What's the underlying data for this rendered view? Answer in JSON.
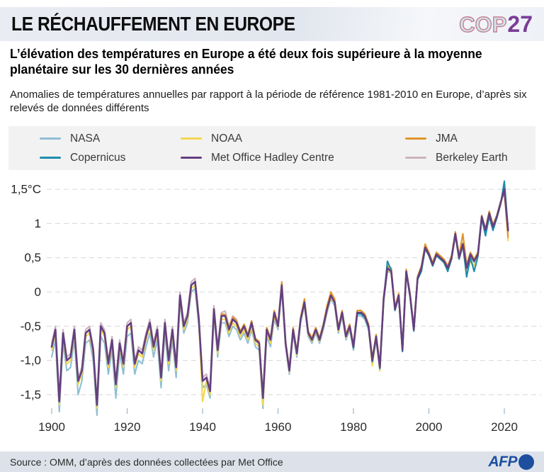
{
  "header": {
    "title": "LE RÉCHAUFFEMENT EN EUROPE",
    "logo_cop": "COP",
    "logo_num": "27"
  },
  "subtitle": "L’élévation des températures en Europe a été deux fois supérieure à la moyenne planétaire sur les 30 dernières années",
  "description": "Anomalies de températures annuelles par rapport à la période de référence 1981-2010 en Europe, d’après six relevés de données différents",
  "legend": {
    "columns": [
      [
        {
          "label": "NASA",
          "color": "#8fbfd4"
        },
        {
          "label": "Copernicus",
          "color": "#1e8cab"
        }
      ],
      [
        {
          "label": "NOAA",
          "color": "#f2d74e"
        },
        {
          "label": "Met Office Hadley Centre",
          "color": "#64407f"
        }
      ],
      [
        {
          "label": "JMA",
          "color": "#e2942a"
        },
        {
          "label": "Berkeley Earth",
          "color": "#ccb2bd"
        }
      ]
    ]
  },
  "footer": {
    "source": "Source : OMM, d’après des données collectées par Met Office",
    "logo_text": "AFP"
  },
  "chart_data": {
    "type": "line",
    "title": "Anomalies de températures annuelles en Europe (référence 1981-2010)",
    "unit": "°C",
    "grid": true,
    "legend_position": "top",
    "ylim": [
      -1.9,
      1.7
    ],
    "ytick_values": [
      1.5,
      1,
      0.5,
      0,
      -0.5,
      -1,
      -1.5
    ],
    "ytick_labels": [
      "1,5°C",
      "1",
      "0,5",
      "0",
      "-0,5",
      "-1,0",
      "-1,5"
    ],
    "xticks": [
      1900,
      1920,
      1940,
      1960,
      1980,
      2000,
      2020
    ],
    "years": [
      1900,
      1901,
      1902,
      1903,
      1904,
      1905,
      1906,
      1907,
      1908,
      1909,
      1910,
      1911,
      1912,
      1913,
      1914,
      1915,
      1916,
      1917,
      1918,
      1919,
      1920,
      1921,
      1922,
      1923,
      1924,
      1925,
      1926,
      1927,
      1928,
      1929,
      1930,
      1931,
      1932,
      1933,
      1934,
      1935,
      1936,
      1937,
      1938,
      1939,
      1940,
      1941,
      1942,
      1943,
      1944,
      1945,
      1946,
      1947,
      1948,
      1949,
      1950,
      1951,
      1952,
      1953,
      1954,
      1955,
      1956,
      1957,
      1958,
      1959,
      1960,
      1961,
      1962,
      1963,
      1964,
      1965,
      1966,
      1967,
      1968,
      1969,
      1970,
      1971,
      1972,
      1973,
      1974,
      1975,
      1976,
      1977,
      1978,
      1979,
      1980,
      1981,
      1982,
      1983,
      1984,
      1985,
      1986,
      1987,
      1988,
      1989,
      1990,
      1991,
      1992,
      1993,
      1994,
      1995,
      1996,
      1997,
      1998,
      1999,
      2000,
      2001,
      2002,
      2003,
      2004,
      2005,
      2006,
      2007,
      2008,
      2009,
      2010,
      2011,
      2012,
      2013,
      2014,
      2015,
      2016,
      2017,
      2018,
      2019,
      2020,
      2021
    ],
    "series": [
      {
        "name": "NASA",
        "color": "#8fbfd4",
        "values": [
          -0.95,
          -0.7,
          -1.75,
          -0.75,
          -1.15,
          -1.1,
          -0.7,
          -1.5,
          -1.3,
          -0.75,
          -0.7,
          -1.0,
          -1.8,
          -0.65,
          -0.75,
          -1.2,
          -0.85,
          -1.55,
          -0.9,
          -1.2,
          -0.65,
          -0.6,
          -1.2,
          -1.0,
          -1.05,
          -0.8,
          -0.6,
          -0.95,
          -0.7,
          -1.4,
          -0.6,
          -1.15,
          -0.7,
          -1.25,
          -0.15,
          -0.6,
          -0.45,
          0.0,
          0.05,
          -0.5,
          -1.4,
          -1.35,
          -1.55,
          -0.35,
          -0.95,
          -0.45,
          -0.45,
          -0.65,
          -0.5,
          -0.55,
          -0.7,
          -0.6,
          -0.75,
          -0.55,
          -0.8,
          -0.85,
          -1.7,
          -0.65,
          -0.8,
          -0.4,
          -0.55,
          0.05,
          -0.8,
          -1.2,
          -0.6,
          -0.95,
          -0.45,
          -0.2,
          -0.65,
          -0.75,
          -0.6,
          -0.75,
          -0.55,
          -0.3,
          -0.1,
          -0.2,
          -0.6,
          -0.35,
          -0.7,
          -0.55,
          -0.85,
          -0.35,
          -0.35,
          -0.4,
          -0.55,
          -1.05,
          -0.7,
          -1.15,
          -0.15,
          0.3,
          0.28,
          -0.27,
          -0.07,
          -0.87,
          0.28,
          -0.07,
          -0.57,
          0.18,
          0.33,
          0.63,
          0.53,
          0.38,
          0.53,
          0.48,
          0.43,
          0.33,
          0.48,
          0.83,
          0.48,
          0.68,
          0.33,
          0.53,
          0.43,
          0.53,
          1.08,
          0.88,
          1.13,
          0.93,
          1.08,
          1.28,
          1.55,
          0.88
        ]
      },
      {
        "name": "NOAA",
        "color": "#f2d74e",
        "values": [
          -0.85,
          -0.6,
          -1.65,
          -0.65,
          -1.05,
          -1.0,
          -0.6,
          -1.35,
          -1.2,
          -0.65,
          -0.6,
          -0.9,
          -1.7,
          -0.55,
          -0.65,
          -1.1,
          -0.75,
          -1.4,
          -0.8,
          -1.1,
          -0.55,
          -0.5,
          -1.1,
          -0.9,
          -0.95,
          -0.7,
          -0.5,
          -0.85,
          -0.6,
          -1.3,
          -0.5,
          -1.05,
          -0.6,
          -1.15,
          -0.1,
          -0.55,
          -0.4,
          0.05,
          0.1,
          -0.45,
          -1.6,
          -1.3,
          -1.5,
          -0.3,
          -0.9,
          -0.4,
          -0.4,
          -0.6,
          -0.45,
          -0.5,
          -0.65,
          -0.55,
          -0.7,
          -0.5,
          -0.75,
          -0.8,
          -1.65,
          -0.6,
          -0.75,
          -0.35,
          -0.52,
          0.08,
          -0.77,
          -1.17,
          -0.57,
          -0.92,
          -0.42,
          -0.17,
          -0.62,
          -0.72,
          -0.57,
          -0.72,
          -0.52,
          -0.27,
          -0.07,
          -0.17,
          -0.57,
          -0.32,
          -0.67,
          -0.52,
          -0.82,
          -0.32,
          -0.32,
          -0.37,
          -0.52,
          -1.08,
          -0.67,
          -1.15,
          -0.12,
          0.33,
          0.28,
          -0.27,
          -0.07,
          -0.87,
          0.28,
          -0.07,
          -0.57,
          0.18,
          0.33,
          0.63,
          0.53,
          0.38,
          0.53,
          0.48,
          0.43,
          0.33,
          0.48,
          0.83,
          0.48,
          0.72,
          0.28,
          0.45,
          0.38,
          0.52,
          1.08,
          0.88,
          1.12,
          0.93,
          1.08,
          1.28,
          1.48,
          0.75
        ]
      },
      {
        "name": "JMA",
        "color": "#e2942a",
        "values": [
          -0.8,
          -0.55,
          -1.6,
          -0.6,
          -1.0,
          -0.95,
          -0.55,
          -1.3,
          -1.15,
          -0.6,
          -0.55,
          -0.85,
          -1.65,
          -0.5,
          -0.6,
          -1.05,
          -0.7,
          -1.35,
          -0.75,
          -1.05,
          -0.5,
          -0.45,
          -1.05,
          -0.85,
          -0.9,
          -0.65,
          -0.45,
          -0.8,
          -0.55,
          -1.25,
          -0.45,
          -1.0,
          -0.55,
          -1.1,
          -0.05,
          -0.5,
          -0.35,
          0.1,
          0.15,
          -0.4,
          -1.3,
          -1.25,
          -1.45,
          -0.25,
          -0.85,
          -0.32,
          -0.33,
          -0.52,
          -0.37,
          -0.42,
          -0.57,
          -0.47,
          -0.62,
          -0.42,
          -0.68,
          -0.72,
          -1.52,
          -0.52,
          -0.67,
          -0.27,
          -0.47,
          0.15,
          -0.72,
          -1.12,
          -0.52,
          -0.87,
          -0.37,
          -0.1,
          -0.57,
          -0.67,
          -0.52,
          -0.67,
          -0.47,
          -0.2,
          0.0,
          -0.1,
          -0.52,
          -0.27,
          -0.62,
          -0.47,
          -0.77,
          -0.27,
          -0.27,
          -0.32,
          -0.47,
          -0.97,
          -0.62,
          -1.07,
          -0.07,
          0.38,
          0.35,
          -0.22,
          -0.02,
          -0.82,
          0.33,
          -0.02,
          -0.52,
          0.23,
          0.38,
          0.7,
          0.58,
          0.43,
          0.58,
          0.53,
          0.48,
          0.38,
          0.53,
          0.88,
          0.53,
          0.85,
          0.4,
          0.58,
          0.48,
          0.58,
          1.12,
          0.92,
          1.18,
          0.98,
          1.12,
          1.32,
          1.45,
          0.8
        ]
      },
      {
        "name": "Copernicus",
        "color": "#1e8cab",
        "values": [
          null,
          null,
          null,
          null,
          null,
          null,
          null,
          null,
          null,
          null,
          null,
          null,
          null,
          null,
          null,
          null,
          null,
          null,
          null,
          null,
          null,
          null,
          null,
          null,
          null,
          null,
          null,
          null,
          null,
          null,
          null,
          null,
          null,
          null,
          null,
          null,
          null,
          null,
          null,
          null,
          null,
          null,
          null,
          null,
          null,
          null,
          null,
          null,
          null,
          null,
          null,
          null,
          null,
          null,
          null,
          null,
          null,
          null,
          null,
          null,
          null,
          null,
          null,
          null,
          null,
          null,
          null,
          null,
          null,
          null,
          null,
          null,
          null,
          null,
          null,
          null,
          null,
          null,
          null,
          -0.5,
          -0.82,
          -0.32,
          -0.32,
          -0.37,
          -0.52,
          -1.02,
          -0.67,
          -1.12,
          -0.12,
          0.45,
          0.32,
          -0.27,
          -0.07,
          -0.87,
          0.28,
          -0.07,
          -0.57,
          0.18,
          0.3,
          0.63,
          0.53,
          0.38,
          0.53,
          0.48,
          0.43,
          0.3,
          0.48,
          0.83,
          0.48,
          0.68,
          0.22,
          0.5,
          0.3,
          0.52,
          1.08,
          0.82,
          1.1,
          0.9,
          1.08,
          1.28,
          1.62,
          0.92
        ]
      },
      {
        "name": "Met Office Hadley Centre",
        "color": "#64407f",
        "values": [
          -0.8,
          -0.55,
          -1.6,
          -0.6,
          -1.0,
          -0.95,
          -0.55,
          -1.3,
          -1.15,
          -0.6,
          -0.55,
          -0.85,
          -1.65,
          -0.5,
          -0.6,
          -1.05,
          -0.7,
          -1.35,
          -0.75,
          -1.05,
          -0.5,
          -0.45,
          -1.05,
          -0.85,
          -0.9,
          -0.65,
          -0.45,
          -0.8,
          -0.55,
          -1.25,
          -0.45,
          -1.0,
          -0.55,
          -1.1,
          -0.05,
          -0.5,
          -0.35,
          0.1,
          0.15,
          -0.4,
          -1.3,
          -1.25,
          -1.45,
          -0.25,
          -0.85,
          -0.35,
          -0.35,
          -0.55,
          -0.4,
          -0.45,
          -0.6,
          -0.5,
          -0.65,
          -0.45,
          -0.7,
          -0.75,
          -1.55,
          -0.55,
          -0.7,
          -0.3,
          -0.5,
          0.1,
          -0.75,
          -1.15,
          -0.55,
          -0.9,
          -0.4,
          -0.15,
          -0.6,
          -0.7,
          -0.55,
          -0.7,
          -0.5,
          -0.25,
          -0.05,
          -0.15,
          -0.55,
          -0.3,
          -0.65,
          -0.5,
          -0.8,
          -0.3,
          -0.3,
          -0.35,
          -0.5,
          -1.0,
          -0.65,
          -1.1,
          -0.1,
          0.35,
          0.3,
          -0.25,
          -0.05,
          -0.85,
          0.3,
          -0.05,
          -0.55,
          0.2,
          0.35,
          0.65,
          0.55,
          0.4,
          0.55,
          0.5,
          0.45,
          0.35,
          0.5,
          0.85,
          0.5,
          0.7,
          0.35,
          0.55,
          0.45,
          0.55,
          1.1,
          0.9,
          1.15,
          0.95,
          1.1,
          1.3,
          1.5,
          0.9
        ]
      },
      {
        "name": "Berkeley Earth",
        "color": "#ccb2bd",
        "values": [
          -0.75,
          -0.5,
          -1.55,
          -0.55,
          -0.95,
          -0.9,
          -0.5,
          -1.25,
          -1.1,
          -0.55,
          -0.5,
          -0.8,
          -1.6,
          -0.45,
          -0.55,
          -1.0,
          -0.65,
          -1.3,
          -0.7,
          -1.0,
          -0.45,
          -0.4,
          -1.0,
          -0.8,
          -0.85,
          -0.6,
          -0.4,
          -0.75,
          -0.5,
          -1.2,
          -0.4,
          -0.95,
          -0.5,
          -1.05,
          0.0,
          -0.45,
          -0.3,
          0.15,
          0.2,
          -0.35,
          -1.25,
          -1.2,
          -1.4,
          -0.2,
          -0.8,
          -0.3,
          -0.28,
          -0.5,
          -0.35,
          -0.4,
          -0.6,
          -0.5,
          -0.65,
          -0.45,
          -0.7,
          -0.75,
          -1.55,
          -0.55,
          -0.7,
          -0.3,
          -0.5,
          0.1,
          -0.75,
          -1.15,
          -0.55,
          -0.9,
          -0.4,
          -0.15,
          -0.6,
          -0.7,
          -0.55,
          -0.7,
          -0.5,
          -0.25,
          -0.05,
          -0.15,
          -0.55,
          -0.3,
          -0.65,
          -0.5,
          -0.8,
          -0.3,
          -0.3,
          -0.35,
          -0.5,
          -1.0,
          -0.65,
          -1.1,
          -0.1,
          0.35,
          0.3,
          -0.25,
          -0.05,
          -0.85,
          0.3,
          -0.05,
          -0.55,
          0.2,
          0.35,
          0.65,
          0.55,
          0.4,
          0.55,
          0.5,
          0.45,
          0.35,
          0.5,
          0.85,
          0.5,
          0.7,
          0.35,
          0.55,
          0.45,
          0.55,
          1.1,
          0.9,
          1.15,
          0.95,
          1.1,
          1.3,
          1.52,
          0.9
        ]
      }
    ],
    "draw_order": [
      "NASA",
      "NOAA",
      "Berkeley Earth",
      "JMA",
      "Copernicus",
      "Met Office Hadley Centre"
    ]
  }
}
